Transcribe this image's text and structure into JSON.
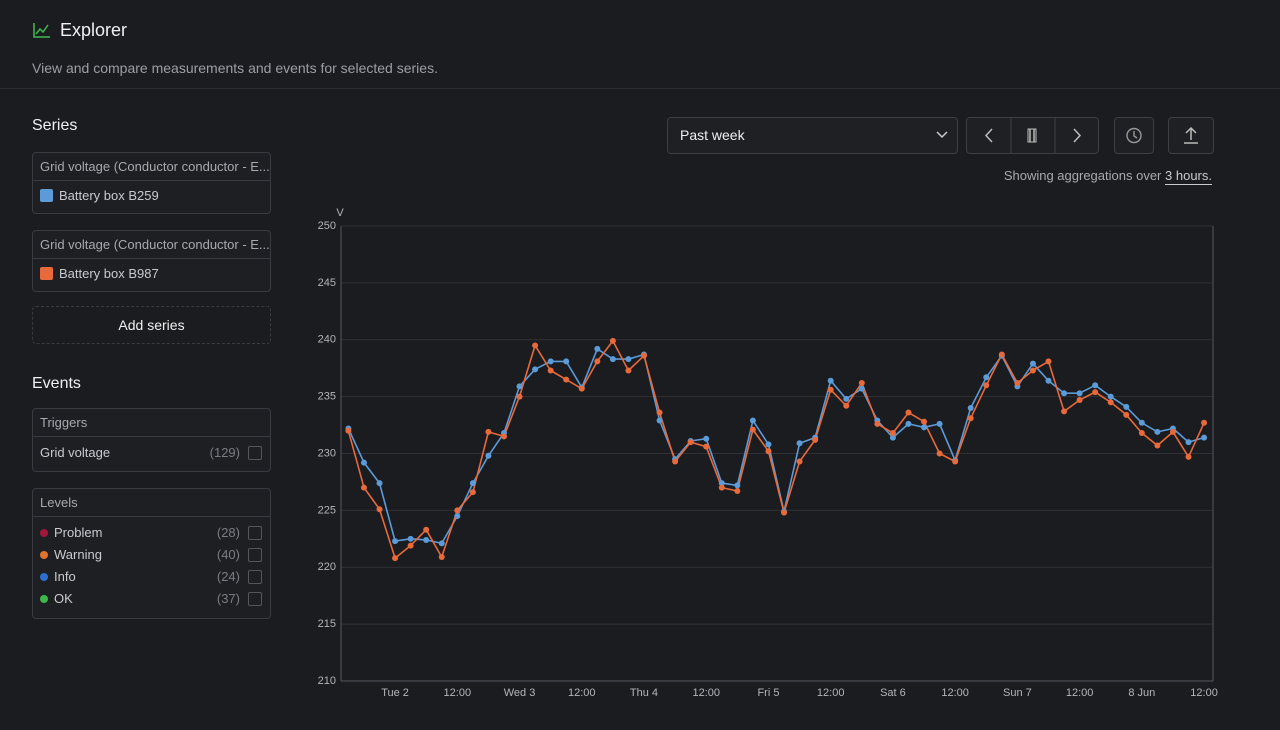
{
  "header": {
    "title": "Explorer",
    "subtitle": "View and compare measurements and events for selected series."
  },
  "sidebar": {
    "series_heading": "Series",
    "series_cards": [
      "Grid voltage (Conductor conductor - E...",
      "Grid voltage (Conductor conductor - E..."
    ],
    "add_series": "Add series",
    "events_heading": "Events",
    "triggers": {
      "heading": "Triggers",
      "items": [
        {
          "label": "Grid voltage",
          "count": "(129)"
        }
      ]
    },
    "levels": {
      "heading": "Levels",
      "items": [
        {
          "label": "Problem",
          "count": "(28)",
          "color": "#a1173c"
        },
        {
          "label": "Warning",
          "count": "(40)",
          "color": "#e0742c"
        },
        {
          "label": "Info",
          "count": "(24)",
          "color": "#2d6fcf"
        },
        {
          "label": "OK",
          "count": "(37)",
          "color": "#3cb84a"
        }
      ]
    }
  },
  "toolbar": {
    "range": "Past week",
    "aggregation_text": "Showing aggregations over",
    "aggregation_link": "3 hours."
  },
  "chart_data": {
    "type": "line",
    "ylabel": "V",
    "categories": [
      null,
      null,
      null,
      "Tue 2",
      null,
      null,
      null,
      "12:00",
      null,
      null,
      null,
      "Wed 3",
      null,
      null,
      null,
      "12:00",
      null,
      null,
      null,
      "Thu 4",
      null,
      null,
      null,
      "12:00",
      null,
      null,
      null,
      "Fri 5",
      null,
      null,
      null,
      "12:00",
      null,
      null,
      null,
      "Sat 6",
      null,
      null,
      null,
      "12:00",
      null,
      null,
      null,
      "Sun 7",
      null,
      null,
      null,
      "12:00",
      null,
      null,
      null,
      "8 Jun",
      null,
      null,
      null,
      "12:00"
    ],
    "series": [
      {
        "name": "Battery box B259",
        "color": "#5b9bd8",
        "values": [
          232.2,
          229.2,
          227.4,
          222.3,
          222.5,
          222.4,
          222.1,
          224.5,
          227.4,
          229.8,
          231.8,
          235.9,
          237.4,
          238.1,
          238.1,
          235.8,
          239.2,
          238.3,
          238.3,
          238.7,
          232.9,
          229.5,
          231.1,
          231.3,
          227.4,
          227.2,
          232.9,
          230.8,
          224.9,
          230.9,
          231.4,
          236.4,
          234.8,
          235.7,
          232.9,
          231.4,
          232.6,
          232.3,
          232.6,
          229.4,
          234.0,
          236.7,
          238.6,
          235.9,
          237.9,
          236.4,
          235.3,
          235.3,
          236.0,
          235.0,
          234.1,
          232.7,
          231.9,
          232.2,
          231.0,
          231.4
        ]
      },
      {
        "name": "Battery box B987",
        "color": "#e8693a",
        "values": [
          232.0,
          227.0,
          225.1,
          220.8,
          221.9,
          223.3,
          220.9,
          225.0,
          226.6,
          231.9,
          231.5,
          235.0,
          239.5,
          237.3,
          236.5,
          235.7,
          238.1,
          239.9,
          237.3,
          238.6,
          233.6,
          229.3,
          231.0,
          230.6,
          227.0,
          226.7,
          232.1,
          230.2,
          224.8,
          229.3,
          231.2,
          235.6,
          234.2,
          236.2,
          232.6,
          231.8,
          233.6,
          232.8,
          230.0,
          229.3,
          233.1,
          236.0,
          238.7,
          236.2,
          237.3,
          238.1,
          233.7,
          234.7,
          235.4,
          234.5,
          233.4,
          231.8,
          230.7,
          231.9,
          229.7,
          232.7
        ]
      }
    ],
    "ylim": [
      210,
      250
    ],
    "yticks": [
      210,
      215,
      220,
      225,
      230,
      235,
      240,
      245,
      250
    ],
    "grid": true
  }
}
